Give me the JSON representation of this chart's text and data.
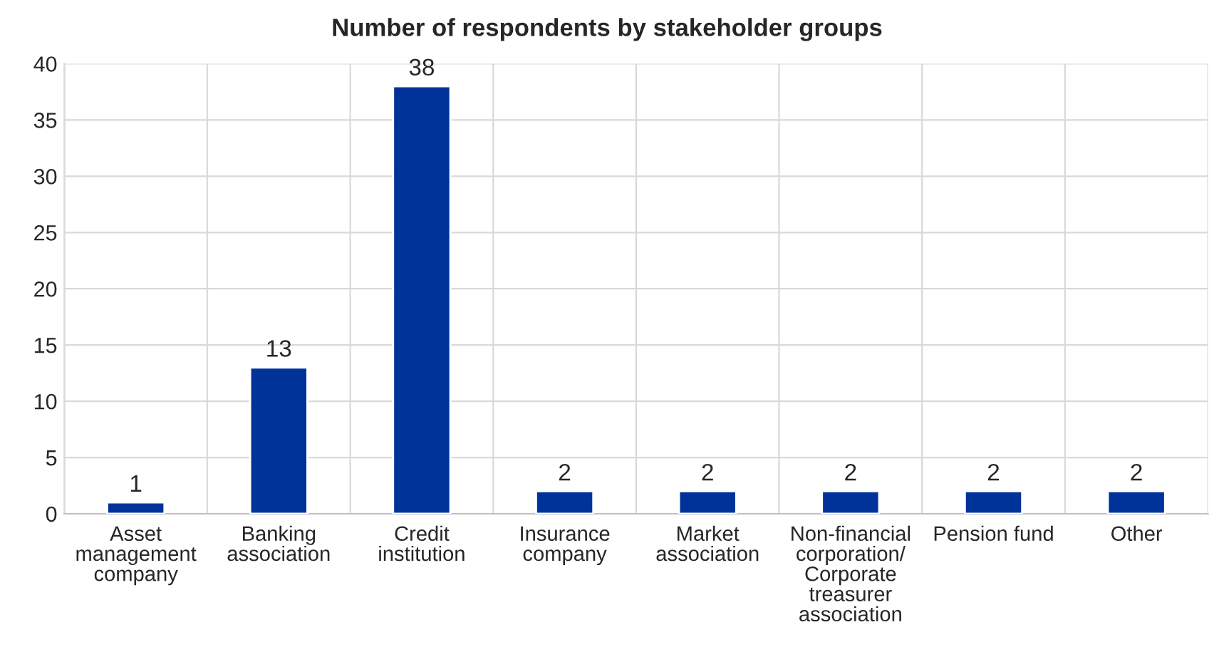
{
  "chart_data": {
    "type": "bar",
    "title": "Number of respondents by stakeholder groups",
    "categories": [
      "Asset\nmanagement\ncompany",
      "Banking\nassociation",
      "Credit\ninstitution",
      "Insurance\ncompany",
      "Market\nassociation",
      "Non-financial\ncorporation/\nCorporate\ntreasurer\nassociation",
      "Pension fund",
      "Other"
    ],
    "values": [
      1,
      13,
      38,
      2,
      2,
      2,
      2,
      2
    ],
    "color": "#003399",
    "ylim": [
      0,
      40
    ],
    "yticks": [
      0,
      5,
      10,
      15,
      20,
      25,
      30,
      35,
      40
    ],
    "grid": true,
    "data_labels": true
  }
}
